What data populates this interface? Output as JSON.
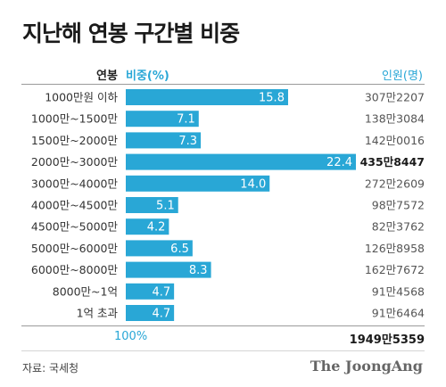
{
  "title": "지난해 연봉 구간별 비중",
  "headers": {
    "label": "연봉",
    "percent": "비중(%)",
    "count": "인원(명)"
  },
  "chart_data": {
    "type": "bar",
    "orientation": "horizontal",
    "title": "지난해 연봉 구간별 비중",
    "categories": [
      "1000만원 이하",
      "1000만~1500만",
      "1500만~2000만",
      "2000만~3000만",
      "3000만~4000만",
      "4000만~4500만",
      "4500만~5000만",
      "5000만~6000만",
      "6000만~8000만",
      "8000만~1억",
      "1억 초과"
    ],
    "series": [
      {
        "name": "비중(%)",
        "values": [
          15.8,
          7.1,
          7.3,
          22.4,
          14.0,
          5.1,
          4.2,
          6.5,
          8.3,
          4.7,
          4.7
        ]
      }
    ],
    "value_labels": [
      "15.8",
      "7.1",
      "7.3",
      "22.4",
      "14.0",
      "5.1",
      "4.2",
      "6.5",
      "8.3",
      "4.7",
      "4.7"
    ],
    "counts": [
      "307만2207",
      "138만3084",
      "142만0016",
      "435만8447",
      "272만2609",
      "98만7572",
      "82만3762",
      "126만8958",
      "162만7672",
      "91만4568",
      "91만6464"
    ],
    "highlight_index": 3,
    "xlim": [
      0,
      22.4
    ],
    "grid": false,
    "bar_color": "#29a7d6"
  },
  "totals": {
    "percent": "100%",
    "count": "1949만5359"
  },
  "source": "자료: 국세청",
  "logo": "The JoongAng"
}
